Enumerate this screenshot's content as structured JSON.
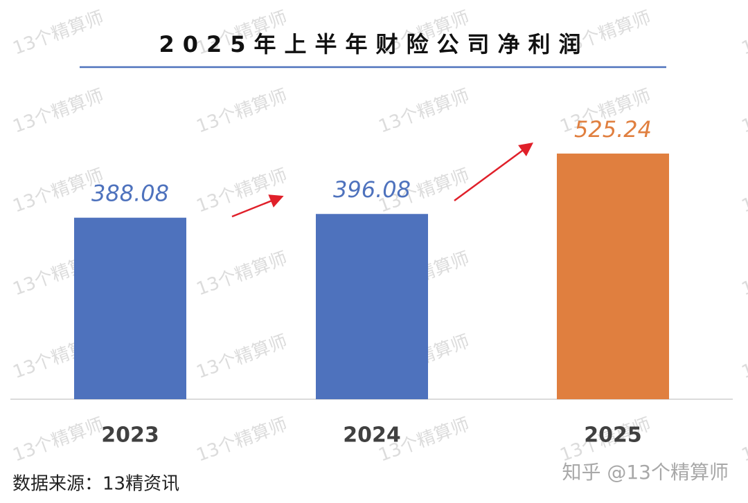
{
  "chart_data": {
    "type": "bar",
    "title": "2025年上半年财险公司净利润",
    "categories": [
      "2023",
      "2024",
      "2025"
    ],
    "values": [
      388.08,
      396.08,
      525.24
    ],
    "colors": [
      "#4e72bd",
      "#4e72bd",
      "#e07f3f"
    ],
    "source": "数据来源：13精资讯",
    "watermark": "13个精算师",
    "credit": "知乎 @13个精算师"
  }
}
